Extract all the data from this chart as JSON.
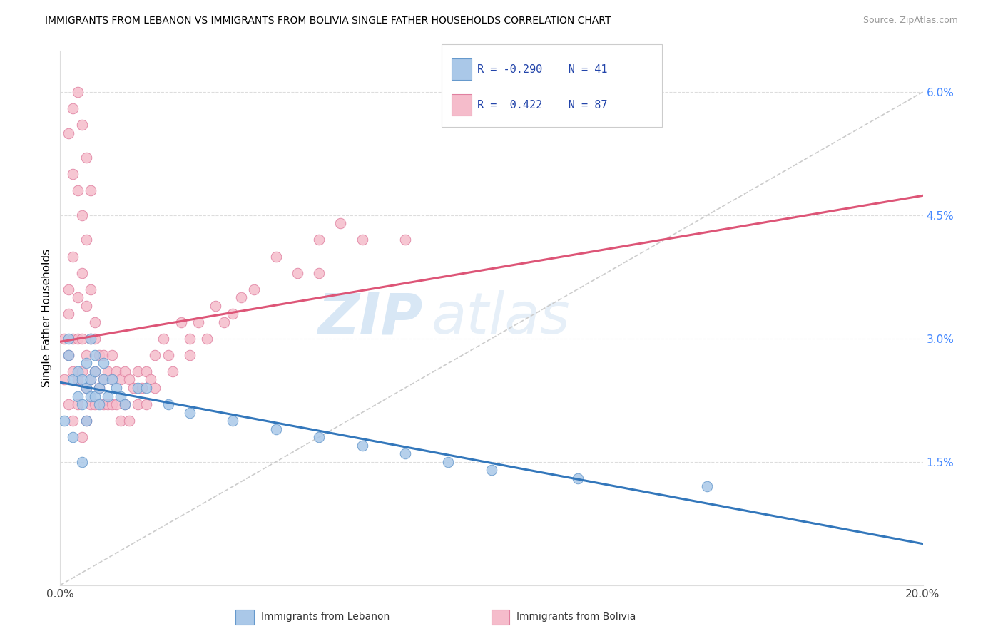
{
  "title": "IMMIGRANTS FROM LEBANON VS IMMIGRANTS FROM BOLIVIA SINGLE FATHER HOUSEHOLDS CORRELATION CHART",
  "source": "Source: ZipAtlas.com",
  "ylabel": "Single Father Households",
  "watermark_zip": "ZIP",
  "watermark_atlas": "atlas",
  "xlim": [
    0.0,
    0.2
  ],
  "ylim": [
    0.0,
    0.065
  ],
  "xticks": [
    0.0,
    0.04,
    0.08,
    0.12,
    0.16,
    0.2
  ],
  "xtick_labels": [
    "0.0%",
    "",
    "",
    "",
    "",
    "20.0%"
  ],
  "yticks_right": [
    0.0,
    0.015,
    0.03,
    0.045,
    0.06
  ],
  "ytick_right_labels": [
    "",
    "1.5%",
    "3.0%",
    "4.5%",
    "6.0%"
  ],
  "lebanon_color": "#aac8e8",
  "lebanon_edge": "#6699cc",
  "bolivia_color": "#f5bccb",
  "bolivia_edge": "#e080a0",
  "trend_lebanon_color": "#3377bb",
  "trend_bolivia_color": "#dd5577",
  "trend_dashed_color": "#cccccc",
  "R_lebanon": -0.29,
  "N_lebanon": 41,
  "R_bolivia": 0.422,
  "N_bolivia": 87,
  "legend_R_color": "#2244aa",
  "lebanon_x": [
    0.001,
    0.002,
    0.002,
    0.003,
    0.003,
    0.004,
    0.004,
    0.005,
    0.005,
    0.005,
    0.006,
    0.006,
    0.006,
    0.007,
    0.007,
    0.007,
    0.008,
    0.008,
    0.008,
    0.009,
    0.009,
    0.01,
    0.01,
    0.011,
    0.012,
    0.013,
    0.014,
    0.015,
    0.018,
    0.02,
    0.025,
    0.03,
    0.04,
    0.05,
    0.06,
    0.07,
    0.08,
    0.09,
    0.1,
    0.12,
    0.15
  ],
  "lebanon_y": [
    0.02,
    0.028,
    0.03,
    0.025,
    0.018,
    0.023,
    0.026,
    0.022,
    0.025,
    0.015,
    0.024,
    0.027,
    0.02,
    0.025,
    0.023,
    0.03,
    0.026,
    0.023,
    0.028,
    0.024,
    0.022,
    0.025,
    0.027,
    0.023,
    0.025,
    0.024,
    0.023,
    0.022,
    0.024,
    0.024,
    0.022,
    0.021,
    0.02,
    0.019,
    0.018,
    0.017,
    0.016,
    0.015,
    0.014,
    0.013,
    0.012
  ],
  "bolivia_x": [
    0.001,
    0.001,
    0.002,
    0.002,
    0.002,
    0.003,
    0.003,
    0.003,
    0.004,
    0.004,
    0.004,
    0.005,
    0.005,
    0.005,
    0.006,
    0.006,
    0.006,
    0.007,
    0.007,
    0.007,
    0.008,
    0.008,
    0.008,
    0.009,
    0.009,
    0.01,
    0.01,
    0.01,
    0.011,
    0.011,
    0.012,
    0.012,
    0.012,
    0.013,
    0.013,
    0.014,
    0.014,
    0.015,
    0.015,
    0.016,
    0.016,
    0.017,
    0.018,
    0.018,
    0.019,
    0.02,
    0.02,
    0.021,
    0.022,
    0.022,
    0.024,
    0.025,
    0.026,
    0.028,
    0.03,
    0.03,
    0.032,
    0.034,
    0.036,
    0.038,
    0.04,
    0.042,
    0.045,
    0.05,
    0.055,
    0.06,
    0.06,
    0.065,
    0.07,
    0.08,
    0.002,
    0.003,
    0.004,
    0.005,
    0.006,
    0.007,
    0.008,
    0.002,
    0.003,
    0.004,
    0.005,
    0.006,
    0.003,
    0.004,
    0.005,
    0.006,
    0.007
  ],
  "bolivia_y": [
    0.025,
    0.03,
    0.022,
    0.028,
    0.033,
    0.026,
    0.03,
    0.02,
    0.025,
    0.03,
    0.022,
    0.026,
    0.03,
    0.018,
    0.024,
    0.028,
    0.02,
    0.025,
    0.03,
    0.022,
    0.026,
    0.03,
    0.022,
    0.024,
    0.028,
    0.025,
    0.028,
    0.022,
    0.026,
    0.022,
    0.025,
    0.028,
    0.022,
    0.026,
    0.022,
    0.025,
    0.02,
    0.026,
    0.022,
    0.025,
    0.02,
    0.024,
    0.026,
    0.022,
    0.024,
    0.026,
    0.022,
    0.025,
    0.028,
    0.024,
    0.03,
    0.028,
    0.026,
    0.032,
    0.03,
    0.028,
    0.032,
    0.03,
    0.034,
    0.032,
    0.033,
    0.035,
    0.036,
    0.04,
    0.038,
    0.042,
    0.038,
    0.044,
    0.042,
    0.042,
    0.036,
    0.04,
    0.035,
    0.038,
    0.034,
    0.036,
    0.032,
    0.055,
    0.05,
    0.048,
    0.045,
    0.042,
    0.058,
    0.06,
    0.056,
    0.052,
    0.048
  ]
}
